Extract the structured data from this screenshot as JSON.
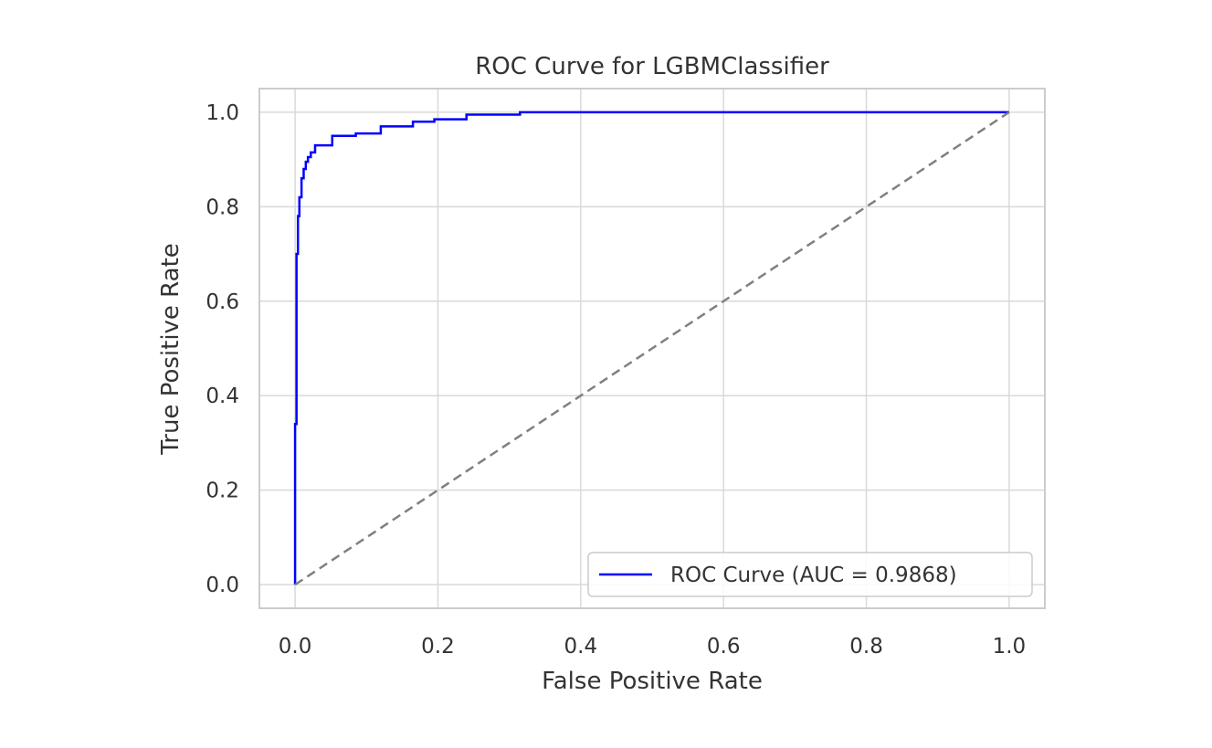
{
  "chart_data": {
    "type": "line",
    "title": "ROC Curve for LGBMClassifier",
    "xlabel": "False Positive Rate",
    "ylabel": "True Positive Rate",
    "xlim": [
      -0.05,
      1.05
    ],
    "ylim": [
      -0.05,
      1.05
    ],
    "x_ticks": [
      0.0,
      0.2,
      0.4,
      0.6,
      0.8,
      1.0
    ],
    "y_ticks": [
      0.0,
      0.2,
      0.4,
      0.6,
      0.8,
      1.0
    ],
    "x_tick_labels": [
      "0.0",
      "0.2",
      "0.4",
      "0.6",
      "0.8",
      "1.0"
    ],
    "y_tick_labels": [
      "0.0",
      "0.2",
      "0.4",
      "0.6",
      "0.8",
      "1.0"
    ],
    "grid": true,
    "legend_position": "lower-right",
    "series": [
      {
        "name": "ROC Curve (AUC = 0.9868)",
        "color": "#0000ff",
        "style": "solid",
        "x": [
          0.0,
          0.0,
          0.002,
          0.002,
          0.004,
          0.004,
          0.006,
          0.006,
          0.009,
          0.009,
          0.012,
          0.012,
          0.015,
          0.015,
          0.018,
          0.018,
          0.022,
          0.022,
          0.028,
          0.028,
          0.052,
          0.052,
          0.085,
          0.085,
          0.12,
          0.12,
          0.165,
          0.165,
          0.195,
          0.195,
          0.24,
          0.24,
          0.315,
          0.315,
          1.0
        ],
        "y": [
          0.0,
          0.34,
          0.34,
          0.7,
          0.7,
          0.78,
          0.78,
          0.82,
          0.82,
          0.86,
          0.86,
          0.88,
          0.88,
          0.895,
          0.895,
          0.905,
          0.905,
          0.915,
          0.915,
          0.93,
          0.93,
          0.95,
          0.95,
          0.955,
          0.955,
          0.97,
          0.97,
          0.98,
          0.98,
          0.985,
          0.985,
          0.995,
          0.995,
          1.0,
          1.0
        ]
      },
      {
        "color": "#808080",
        "style": "dashed",
        "x": [
          0.0,
          1.0
        ],
        "y": [
          0.0,
          1.0
        ]
      }
    ]
  }
}
